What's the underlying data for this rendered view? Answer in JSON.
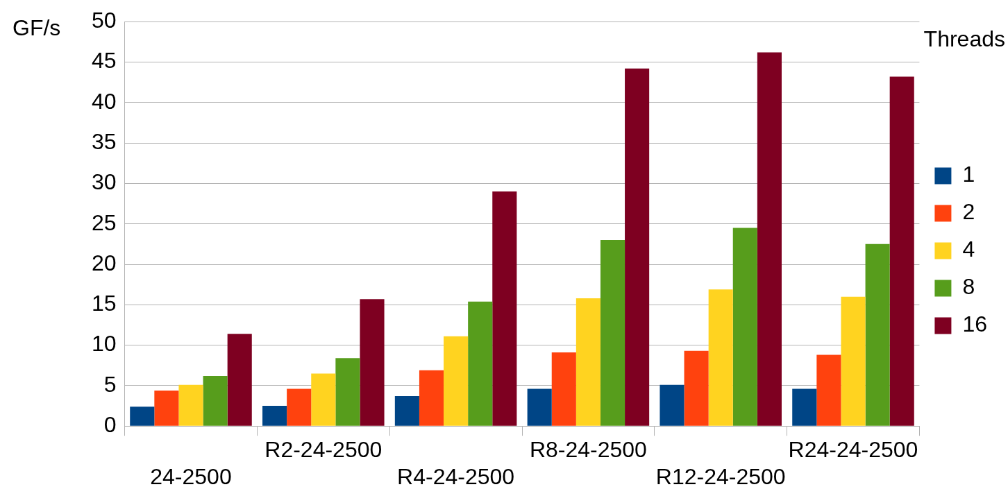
{
  "chart_data": {
    "type": "bar",
    "ylabel": "GF/s",
    "legend_title": "Threads",
    "categories": [
      "24-2500",
      "R2-24-2500",
      "R4-24-2500",
      "R8-24-2500",
      "R12-24-2500",
      "R24-24-2500"
    ],
    "series": [
      {
        "name": "1",
        "color": "#004586",
        "values": [
          2.4,
          2.5,
          3.7,
          4.6,
          5.1,
          4.6
        ]
      },
      {
        "name": "2",
        "color": "#ff420e",
        "values": [
          4.4,
          4.6,
          6.9,
          9.1,
          9.3,
          8.8
        ]
      },
      {
        "name": "4",
        "color": "#ffd320",
        "values": [
          5.1,
          6.5,
          11.1,
          15.8,
          16.9,
          16.0
        ]
      },
      {
        "name": "8",
        "color": "#579d1c",
        "values": [
          6.2,
          8.4,
          15.4,
          23.0,
          24.5,
          22.5
        ]
      },
      {
        "name": "16",
        "color": "#7e0021",
        "values": [
          11.4,
          15.7,
          29.0,
          44.2,
          46.2,
          43.2
        ]
      }
    ],
    "ylim": [
      0,
      50
    ],
    "yticks": [
      0,
      5,
      10,
      15,
      20,
      25,
      30,
      35,
      40,
      45,
      50
    ],
    "grid": "y",
    "legend": "right"
  }
}
